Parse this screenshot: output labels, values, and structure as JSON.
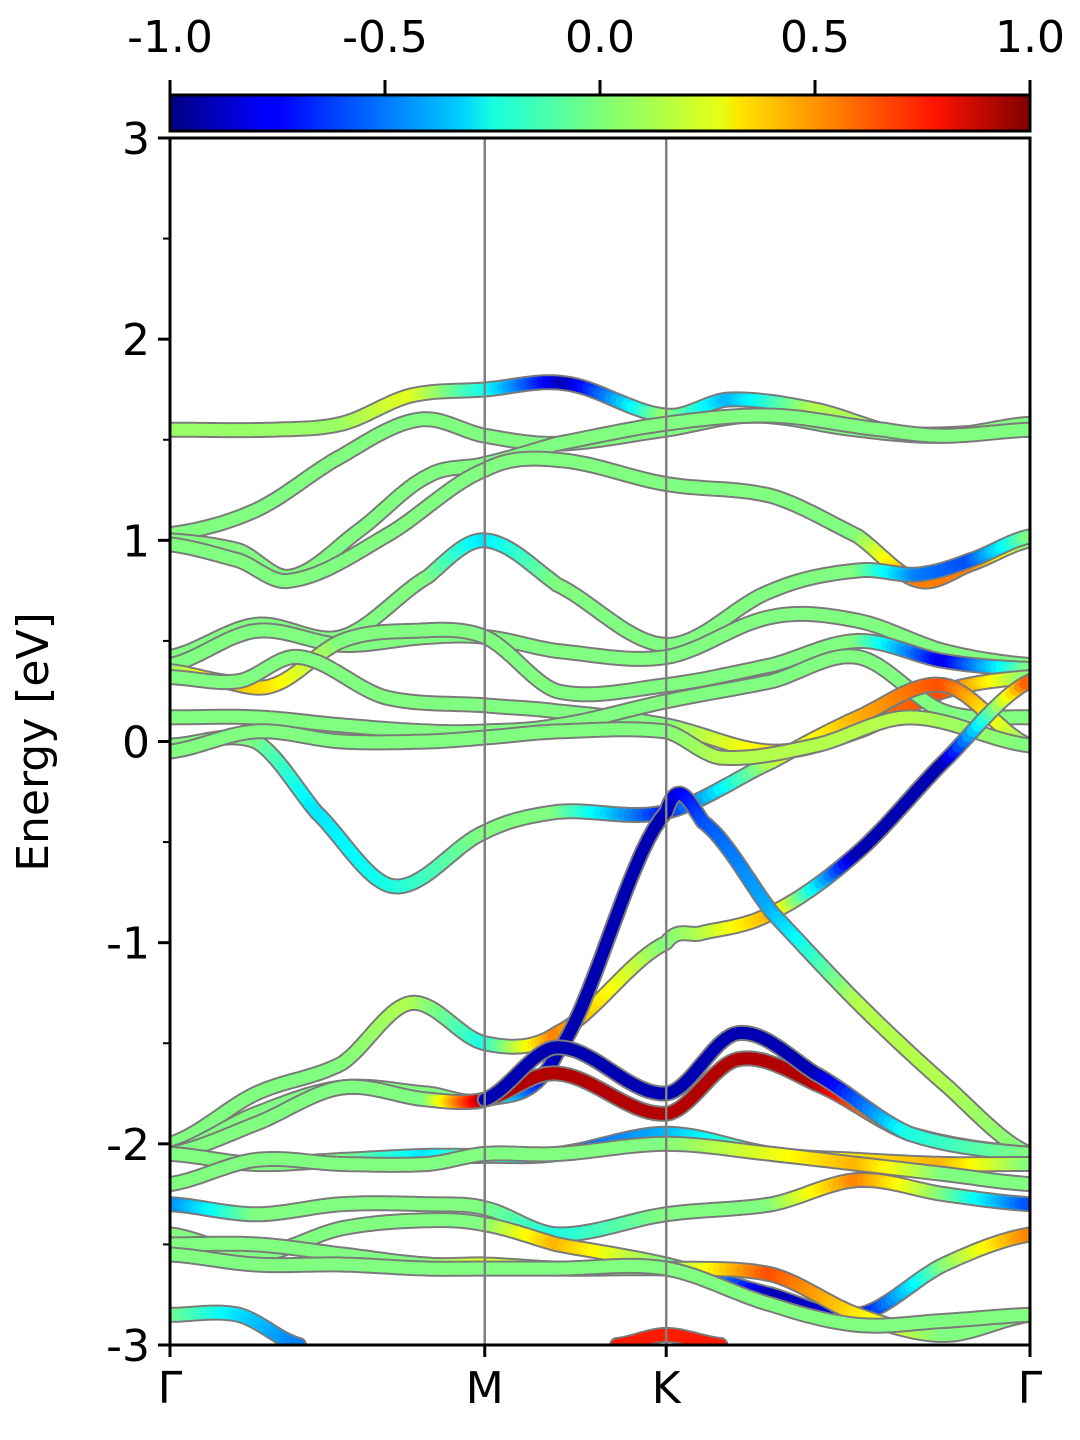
{
  "chart_data": {
    "type": "line",
    "subtype": "band-structure",
    "ylabel": "Energy [eV]",
    "ylim": [
      -3,
      3
    ],
    "y_major_ticks": [
      "-3",
      "-2",
      "-1",
      "0",
      "1",
      "2",
      "3"
    ],
    "y_major_values": [
      -3,
      -2,
      -1,
      0,
      1,
      2,
      3
    ],
    "y_minor_values": [
      -2.5,
      -1.5,
      -0.5,
      0.5,
      1.5,
      2.5
    ],
    "kpath": {
      "labels": [
        "Γ",
        "M",
        "K",
        "Γ"
      ],
      "positions": [
        0,
        0.366,
        0.577,
        1.0
      ]
    },
    "colorbar": {
      "colormap": "jet",
      "range": [
        -1.0,
        1.0
      ],
      "tick_labels": [
        "-1.0",
        "-0.5",
        "0.0",
        "0.5",
        "1.0"
      ],
      "tick_values": [
        -1.0,
        -0.5,
        0.0,
        0.5,
        1.0
      ],
      "position": "top"
    },
    "colors": {
      "neutral_band": "#8cf27a",
      "band_edge": "#7a7a7a",
      "k_divider": "#808080"
    },
    "bands": [
      {
        "k": [
          0,
          0.12,
          0.2,
          0.28,
          0.366,
          0.46,
          0.577,
          0.65,
          0.75,
          0.85,
          1.0
        ],
        "e": [
          1.55,
          1.55,
          1.58,
          1.72,
          1.75,
          1.78,
          1.62,
          1.7,
          1.65,
          1.53,
          1.55
        ],
        "s": [
          0.05,
          0.05,
          0.05,
          0.2,
          -0.2,
          -0.9,
          0.05,
          -0.4,
          0.1,
          0.05,
          0.05
        ]
      },
      {
        "k": [
          0,
          0.1,
          0.2,
          0.29,
          0.366,
          0.45,
          0.577,
          0.68,
          0.8,
          0.9,
          1.0
        ],
        "e": [
          1.03,
          1.15,
          1.42,
          1.6,
          1.52,
          1.48,
          1.55,
          1.62,
          1.55,
          1.52,
          1.58
        ],
        "s": [
          0.0,
          0.0,
          0.0,
          0.0,
          0.0,
          0.0,
          0.0,
          0.0,
          0.0,
          0.0,
          0.0
        ]
      },
      {
        "k": [
          0,
          0.08,
          0.14,
          0.22,
          0.3,
          0.366,
          0.45,
          0.577,
          0.7,
          0.83,
          0.9,
          1.0
        ],
        "e": [
          1.0,
          0.95,
          0.82,
          1.05,
          1.32,
          1.38,
          1.48,
          1.58,
          1.62,
          1.55,
          1.52,
          1.55
        ],
        "s": [
          0.0,
          0.0,
          0.0,
          0.0,
          0.0,
          0.0,
          0.0,
          0.0,
          0.0,
          0.0,
          0.0,
          0.0
        ]
      },
      {
        "k": [
          0,
          0.08,
          0.14,
          0.25,
          0.366,
          0.45,
          0.577,
          0.7,
          0.8,
          0.87,
          0.93,
          1.0
        ],
        "e": [
          0.98,
          0.9,
          0.8,
          1.02,
          1.35,
          1.4,
          1.28,
          1.22,
          1.02,
          0.8,
          0.88,
          1.0
        ],
        "s": [
          0.0,
          0.0,
          0.0,
          0.0,
          0.0,
          0.0,
          0.0,
          0.0,
          0.0,
          0.5,
          0.5,
          0.0
        ]
      },
      {
        "k": [
          0,
          0.1,
          0.2,
          0.3,
          0.366,
          0.45,
          0.577,
          0.7,
          0.8,
          0.87,
          0.93,
          1.0
        ],
        "e": [
          0.42,
          0.58,
          0.52,
          0.82,
          1.0,
          0.78,
          0.48,
          0.75,
          0.85,
          0.83,
          0.9,
          1.02
        ],
        "s": [
          0.0,
          0.0,
          0.0,
          0.0,
          -0.3,
          0.0,
          0.0,
          0.0,
          0.0,
          -0.5,
          -0.6,
          0.0
        ]
      },
      {
        "k": [
          0,
          0.1,
          0.2,
          0.3,
          0.366,
          0.45,
          0.577,
          0.7,
          0.8,
          0.9,
          1.0
        ],
        "e": [
          0.38,
          0.55,
          0.48,
          0.52,
          0.52,
          0.45,
          0.42,
          0.62,
          0.6,
          0.45,
          0.38
        ],
        "s": [
          0.0,
          0.0,
          0.0,
          0.0,
          0.0,
          0.0,
          0.0,
          0.0,
          0.0,
          0.0,
          0.0
        ]
      },
      {
        "k": [
          0,
          0.06,
          0.12,
          0.2,
          0.28,
          0.366,
          0.45,
          0.577,
          0.7,
          0.8,
          0.9,
          1.0
        ],
        "e": [
          0.35,
          0.3,
          0.28,
          0.5,
          0.55,
          0.52,
          0.25,
          0.28,
          0.38,
          0.5,
          0.4,
          0.36
        ],
        "s": [
          0.0,
          0.4,
          0.3,
          0.0,
          0.0,
          0.0,
          0.0,
          0.0,
          0.0,
          0.0,
          -0.8,
          0.0
        ]
      },
      {
        "k": [
          0,
          0.08,
          0.15,
          0.25,
          0.366,
          0.45,
          0.577,
          0.7,
          0.8,
          0.9,
          1.0
        ],
        "e": [
          0.32,
          0.3,
          0.42,
          0.22,
          0.18,
          0.15,
          0.08,
          -0.05,
          0.05,
          0.25,
          0.32
        ],
        "s": [
          0.0,
          0.0,
          0.0,
          0.0,
          0.0,
          0.0,
          0.0,
          0.3,
          0.5,
          0.6,
          0.0
        ]
      },
      {
        "k": [
          0,
          0.1,
          0.2,
          0.3,
          0.366,
          0.45,
          0.577,
          0.7,
          0.8,
          0.9,
          1.0
        ],
        "e": [
          0.12,
          0.12,
          0.08,
          0.05,
          0.05,
          0.08,
          0.2,
          0.3,
          0.42,
          0.15,
          0.12
        ],
        "s": [
          0.0,
          0.0,
          0.0,
          0.0,
          0.0,
          0.0,
          0.0,
          0.0,
          0.0,
          0.0,
          0.0
        ]
      },
      {
        "k": [
          0,
          0.1,
          0.17,
          0.26,
          0.366,
          0.45,
          0.577,
          0.7,
          0.8,
          0.9,
          1.0
        ],
        "e": [
          -0.02,
          0.0,
          -0.35,
          -0.72,
          -0.45,
          -0.35,
          -0.35,
          -0.1,
          0.12,
          0.28,
          -0.02
        ],
        "s": [
          0.0,
          0.0,
          -0.3,
          -0.2,
          0.0,
          0.0,
          -0.7,
          0.1,
          0.4,
          0.6,
          0.0
        ]
      },
      {
        "k": [
          0,
          0.1,
          0.2,
          0.3,
          0.366,
          0.45,
          0.577,
          0.64,
          0.75,
          0.86,
          1.0
        ],
        "e": [
          -0.05,
          0.05,
          0.0,
          0.0,
          0.02,
          0.05,
          0.05,
          -0.08,
          -0.02,
          0.12,
          -0.02
        ],
        "s": [
          0.0,
          0.0,
          0.0,
          0.0,
          0.0,
          0.0,
          0.0,
          0.1,
          0.1,
          0.1,
          0.0
        ]
      },
      {
        "k": [
          0,
          0.1,
          0.2,
          0.28,
          0.366,
          0.45,
          0.577,
          0.62,
          0.7,
          0.8,
          0.9,
          1.0
        ],
        "e": [
          -2.0,
          -1.75,
          -1.6,
          -1.3,
          -1.5,
          -1.45,
          -1.0,
          -0.95,
          -0.85,
          -0.55,
          -0.1,
          0.3
        ],
        "s": [
          0.0,
          0.0,
          0.0,
          0.1,
          -0.2,
          0.5,
          0.0,
          0.1,
          0.4,
          -0.9,
          -0.9,
          0.6
        ]
      },
      {
        "k": [
          0,
          0.1,
          0.2,
          0.3,
          0.366,
          0.45,
          0.577,
          0.62,
          0.7,
          0.8,
          0.9,
          1.0
        ],
        "e": [
          -2.05,
          -1.85,
          -1.72,
          -1.75,
          -1.78,
          -1.55,
          -0.35,
          -0.4,
          -0.85,
          -1.3,
          -1.7,
          -2.05
        ],
        "s": [
          0.0,
          0.0,
          0.0,
          0.0,
          0.0,
          -0.9,
          -0.9,
          -0.6,
          -0.4,
          0.1,
          0.1,
          0.0
        ]
      },
      {
        "k": [
          0,
          0.1,
          0.2,
          0.3,
          0.366,
          0.45,
          0.577,
          0.66,
          0.75,
          0.86,
          1.0
        ],
        "e": [
          -2.05,
          -1.9,
          -1.72,
          -1.78,
          -1.78,
          -1.65,
          -1.85,
          -1.58,
          -1.7,
          -1.95,
          -2.05
        ],
        "s": [
          0.0,
          0.0,
          0.0,
          0.0,
          0.9,
          0.9,
          0.9,
          0.9,
          0.9,
          0.2,
          0.0
        ]
      },
      {
        "k": [
          0.366,
          0.45,
          0.577,
          0.66,
          0.75,
          0.86,
          1.0
        ],
        "e": [
          -1.78,
          -1.52,
          -1.75,
          -1.45,
          -1.65,
          -1.95,
          -2.05
        ],
        "s": [
          -0.9,
          -0.9,
          -0.9,
          -0.9,
          -0.9,
          -0.2,
          0.0
        ]
      },
      {
        "k": [
          0,
          0.1,
          0.2,
          0.3,
          0.366,
          0.45,
          0.577,
          0.7,
          0.8,
          0.9,
          1.0
        ],
        "e": [
          -2.05,
          -2.1,
          -2.08,
          -2.06,
          -2.06,
          -2.05,
          -1.95,
          -2.05,
          -2.08,
          -2.1,
          -2.1
        ],
        "s": [
          0.0,
          0.0,
          0.0,
          -0.3,
          0.0,
          -0.6,
          -0.4,
          0.0,
          0.3,
          0.4,
          0.0
        ]
      },
      {
        "k": [
          0,
          0.1,
          0.2,
          0.3,
          0.366,
          0.45,
          0.577,
          0.7,
          0.8,
          0.9,
          1.0
        ],
        "e": [
          -2.2,
          -2.08,
          -2.1,
          -2.1,
          -2.05,
          -2.05,
          -2.0,
          -2.05,
          -2.1,
          -2.15,
          -2.2
        ],
        "s": [
          0.0,
          0.0,
          0.0,
          0.0,
          0.0,
          0.0,
          0.0,
          0.2,
          0.4,
          0.0,
          0.0
        ]
      },
      {
        "k": [
          0,
          0.1,
          0.2,
          0.3,
          0.366,
          0.45,
          0.577,
          0.7,
          0.8,
          0.9,
          1.0
        ],
        "e": [
          -2.3,
          -2.35,
          -2.3,
          -2.3,
          -2.32,
          -2.45,
          -2.35,
          -2.3,
          -2.18,
          -2.25,
          -2.3
        ],
        "s": [
          -0.5,
          0.0,
          0.0,
          0.0,
          0.0,
          -0.2,
          0.0,
          0.0,
          0.5,
          0.0,
          -0.6
        ]
      },
      {
        "k": [
          0,
          0.1,
          0.2,
          0.3,
          0.366,
          0.45,
          0.577,
          0.7,
          0.8,
          0.9,
          1.0
        ],
        "e": [
          -2.45,
          -2.55,
          -2.42,
          -2.38,
          -2.4,
          -2.5,
          -2.6,
          -2.75,
          -2.85,
          -2.6,
          -2.45
        ],
        "s": [
          0.0,
          0.0,
          0.0,
          0.0,
          0.0,
          0.4,
          0.0,
          -0.9,
          -0.8,
          0.0,
          0.5
        ]
      },
      {
        "k": [
          0,
          0.1,
          0.2,
          0.3,
          0.366,
          0.45,
          0.577,
          0.7,
          0.8,
          0.9,
          1.0
        ],
        "e": [
          -2.5,
          -2.5,
          -2.55,
          -2.6,
          -2.6,
          -2.62,
          -2.62,
          -2.65,
          -2.85,
          -2.95,
          -2.85
        ],
        "s": [
          0.0,
          0.0,
          0.0,
          0.0,
          0.2,
          0.0,
          0.0,
          0.6,
          0.3,
          0.0,
          0.0
        ]
      },
      {
        "k": [
          0,
          0.1,
          0.2,
          0.3,
          0.366,
          0.45,
          0.577,
          0.7,
          0.8,
          0.9,
          1.0
        ],
        "e": [
          -2.55,
          -2.6,
          -2.6,
          -2.62,
          -2.62,
          -2.62,
          -2.62,
          -2.8,
          -2.9,
          -2.88,
          -2.85
        ],
        "s": [
          0.0,
          0.0,
          0.0,
          0.0,
          0.0,
          0.0,
          0.0,
          0.0,
          0.0,
          0.0,
          0.0
        ]
      },
      {
        "k": [
          0,
          0.08,
          0.15
        ],
        "e": [
          -2.85,
          -2.85,
          -3.0
        ],
        "s": [
          0.0,
          -0.3,
          -0.5
        ]
      },
      {
        "k": [
          0.52,
          0.577,
          0.64
        ],
        "e": [
          -3.0,
          -2.95,
          -3.0
        ],
        "s": [
          0.7,
          0.7,
          0.7
        ]
      }
    ]
  }
}
